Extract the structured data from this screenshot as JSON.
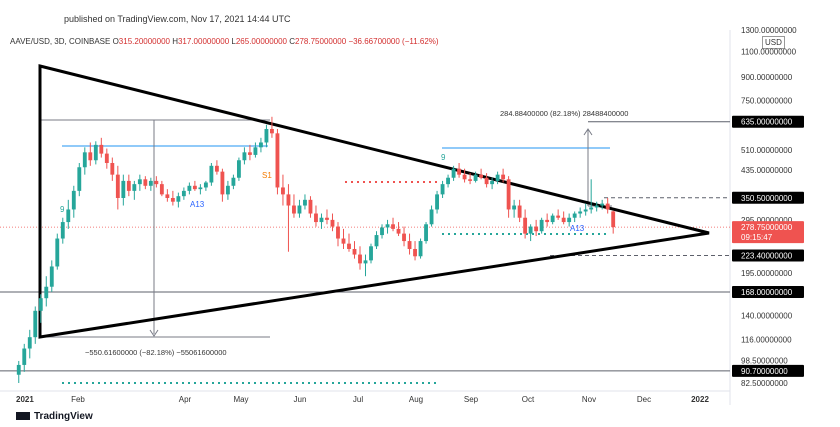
{
  "header": {
    "published": "published on TradingView.com, Nov 17, 2021 14:44 UTC"
  },
  "legend": {
    "symbol": "AAVE/USD, 3D, COINBASE",
    "open_label": "O",
    "open": "315.20000000",
    "high_label": "H",
    "high": "317.00000000",
    "low_label": "L",
    "low": "265.00000000",
    "close_label": "C",
    "close": "278.75000000",
    "change": "−36.66700000 (−11.62%)"
  },
  "currency": "USD",
  "brand": "TradingView",
  "colors": {
    "up": "#26a69a",
    "down": "#ef5350",
    "line": "#000000",
    "measure": "#787b86",
    "fib": "#90caf9",
    "label_bg": "#000000"
  },
  "chart_data": {
    "type": "candlestick",
    "scale": "log",
    "ylim": [
      82.5,
      1300
    ],
    "y_ticks": [
      "1300.00000000",
      "1100.00000000",
      "900.00000000",
      "750.00000000",
      "635.00000000",
      "510.00000000",
      "435.00000000",
      "350.50000000",
      "295.00000000",
      "278.75000000",
      "223.40000000",
      "195.00000000",
      "168.00000000",
      "140.00000000",
      "116.00000000",
      "98.50000000",
      "90.70000000",
      "82.50000000"
    ],
    "y_tick_values": [
      1300,
      1100,
      900,
      750,
      635,
      510,
      435,
      350.5,
      295,
      278.75,
      223.4,
      195,
      168,
      140,
      116,
      98.5,
      90.7,
      82.5
    ],
    "highlighted_levels": [
      "635.00000000",
      "350.50000000",
      "223.40000000",
      "168.00000000",
      "90.70000000"
    ],
    "current_price": "278.75000000",
    "countdown": "09:15:47",
    "x_ticks": [
      "2021",
      "Feb",
      "Apr",
      "May",
      "Jun",
      "Jul",
      "Aug",
      "Sep",
      "Oct",
      "Nov",
      "Dec",
      "2022"
    ],
    "annotations": {
      "upper_measure": "284.88400000 (82.18%) 28488400000",
      "lower_measure": "−550.61600000 (−82.18%) −55061600000",
      "td_labels": [
        "A13",
        "A13",
        "9",
        "9",
        "S1"
      ]
    },
    "candles": [
      {
        "d": "Dec 28",
        "o": 88,
        "h": 98,
        "l": 82.5,
        "c": 95
      },
      {
        "d": "Dec 31",
        "o": 95,
        "h": 112,
        "l": 90,
        "c": 108
      },
      {
        "d": "Jan 03",
        "o": 108,
        "h": 125,
        "l": 100,
        "c": 118
      },
      {
        "d": "Jan 06",
        "o": 118,
        "h": 150,
        "l": 112,
        "c": 145
      },
      {
        "d": "Jan 09",
        "o": 145,
        "h": 165,
        "l": 132,
        "c": 160
      },
      {
        "d": "Jan 12",
        "o": 160,
        "h": 190,
        "l": 150,
        "c": 175
      },
      {
        "d": "Jan 15",
        "o": 175,
        "h": 215,
        "l": 168,
        "c": 205
      },
      {
        "d": "Jan 18",
        "o": 205,
        "h": 265,
        "l": 200,
        "c": 255
      },
      {
        "d": "Jan 21",
        "o": 255,
        "h": 300,
        "l": 245,
        "c": 290
      },
      {
        "d": "Jan 24",
        "o": 290,
        "h": 345,
        "l": 275,
        "c": 320
      },
      {
        "d": "Jan 27",
        "o": 320,
        "h": 385,
        "l": 300,
        "c": 370
      },
      {
        "d": "Jan 30",
        "o": 370,
        "h": 460,
        "l": 355,
        "c": 445
      },
      {
        "d": "Feb 02",
        "o": 445,
        "h": 520,
        "l": 420,
        "c": 500
      },
      {
        "d": "Feb 05",
        "o": 500,
        "h": 540,
        "l": 450,
        "c": 470
      },
      {
        "d": "Feb 08",
        "o": 470,
        "h": 545,
        "l": 455,
        "c": 530
      },
      {
        "d": "Feb 11",
        "o": 530,
        "h": 560,
        "l": 480,
        "c": 495
      },
      {
        "d": "Feb 14",
        "o": 495,
        "h": 515,
        "l": 440,
        "c": 460
      },
      {
        "d": "Feb 17",
        "o": 460,
        "h": 480,
        "l": 400,
        "c": 420
      },
      {
        "d": "Feb 20",
        "o": 420,
        "h": 450,
        "l": 320,
        "c": 350
      },
      {
        "d": "Feb 23",
        "o": 350,
        "h": 420,
        "l": 330,
        "c": 400
      },
      {
        "d": "Feb 26",
        "o": 400,
        "h": 420,
        "l": 355,
        "c": 370
      },
      {
        "d": "Mar 01",
        "o": 370,
        "h": 400,
        "l": 345,
        "c": 390
      },
      {
        "d": "Mar 04",
        "o": 390,
        "h": 420,
        "l": 370,
        "c": 405
      },
      {
        "d": "Mar 07",
        "o": 405,
        "h": 415,
        "l": 375,
        "c": 385
      },
      {
        "d": "Mar 10",
        "o": 385,
        "h": 410,
        "l": 370,
        "c": 400
      },
      {
        "d": "Mar 13",
        "o": 400,
        "h": 415,
        "l": 380,
        "c": 390
      },
      {
        "d": "Mar 16",
        "o": 390,
        "h": 400,
        "l": 355,
        "c": 360
      },
      {
        "d": "Mar 19",
        "o": 360,
        "h": 375,
        "l": 340,
        "c": 350
      },
      {
        "d": "Mar 22",
        "o": 350,
        "h": 370,
        "l": 330,
        "c": 340
      },
      {
        "d": "Mar 25",
        "o": 340,
        "h": 365,
        "l": 325,
        "c": 355
      },
      {
        "d": "Mar 28",
        "o": 355,
        "h": 380,
        "l": 345,
        "c": 370
      },
      {
        "d": "Mar 31",
        "o": 370,
        "h": 395,
        "l": 360,
        "c": 385
      },
      {
        "d": "Apr 03",
        "o": 385,
        "h": 400,
        "l": 370,
        "c": 375
      },
      {
        "d": "Apr 06",
        "o": 375,
        "h": 390,
        "l": 360,
        "c": 380
      },
      {
        "d": "Apr 09",
        "o": 380,
        "h": 400,
        "l": 370,
        "c": 395
      },
      {
        "d": "Apr 12",
        "o": 395,
        "h": 460,
        "l": 385,
        "c": 450
      },
      {
        "d": "Apr 15",
        "o": 450,
        "h": 470,
        "l": 420,
        "c": 430
      },
      {
        "d": "Apr 18",
        "o": 430,
        "h": 440,
        "l": 340,
        "c": 360
      },
      {
        "d": "Apr 21",
        "o": 360,
        "h": 400,
        "l": 345,
        "c": 385
      },
      {
        "d": "Apr 24",
        "o": 385,
        "h": 420,
        "l": 375,
        "c": 410
      },
      {
        "d": "Apr 27",
        "o": 410,
        "h": 480,
        "l": 400,
        "c": 470
      },
      {
        "d": "Apr 30",
        "o": 470,
        "h": 520,
        "l": 455,
        "c": 500
      },
      {
        "d": "May 03",
        "o": 500,
        "h": 530,
        "l": 470,
        "c": 490
      },
      {
        "d": "May 06",
        "o": 490,
        "h": 540,
        "l": 480,
        "c": 520
      },
      {
        "d": "May 09",
        "o": 520,
        "h": 560,
        "l": 500,
        "c": 540
      },
      {
        "d": "May 12",
        "o": 540,
        "h": 620,
        "l": 520,
        "c": 600
      },
      {
        "d": "May 15",
        "o": 600,
        "h": 660,
        "l": 560,
        "c": 580
      },
      {
        "d": "May 18",
        "o": 580,
        "h": 600,
        "l": 360,
        "c": 380
      },
      {
        "d": "May 21",
        "o": 380,
        "h": 420,
        "l": 330,
        "c": 360
      },
      {
        "d": "May 24",
        "o": 360,
        "h": 390,
        "l": 230,
        "c": 330
      },
      {
        "d": "May 27",
        "o": 330,
        "h": 360,
        "l": 300,
        "c": 310
      },
      {
        "d": "May 30",
        "o": 310,
        "h": 345,
        "l": 300,
        "c": 330
      },
      {
        "d": "Jun 02",
        "o": 330,
        "h": 360,
        "l": 320,
        "c": 345
      },
      {
        "d": "Jun 05",
        "o": 345,
        "h": 355,
        "l": 300,
        "c": 310
      },
      {
        "d": "Jun 08",
        "o": 310,
        "h": 330,
        "l": 280,
        "c": 290
      },
      {
        "d": "Jun 11",
        "o": 290,
        "h": 310,
        "l": 275,
        "c": 300
      },
      {
        "d": "Jun 14",
        "o": 300,
        "h": 320,
        "l": 285,
        "c": 295
      },
      {
        "d": "Jun 17",
        "o": 295,
        "h": 310,
        "l": 270,
        "c": 280
      },
      {
        "d": "Jun 20",
        "o": 280,
        "h": 290,
        "l": 240,
        "c": 255
      },
      {
        "d": "Jun 23",
        "o": 255,
        "h": 275,
        "l": 235,
        "c": 245
      },
      {
        "d": "Jun 26",
        "o": 245,
        "h": 265,
        "l": 230,
        "c": 235
      },
      {
        "d": "Jun 29",
        "o": 235,
        "h": 250,
        "l": 218,
        "c": 225
      },
      {
        "d": "Jul 02",
        "o": 225,
        "h": 240,
        "l": 200,
        "c": 210
      },
      {
        "d": "Jul 05",
        "o": 210,
        "h": 225,
        "l": 190,
        "c": 215
      },
      {
        "d": "Jul 08",
        "o": 215,
        "h": 245,
        "l": 210,
        "c": 240
      },
      {
        "d": "Jul 11",
        "o": 240,
        "h": 270,
        "l": 235,
        "c": 262
      },
      {
        "d": "Jul 14",
        "o": 262,
        "h": 285,
        "l": 255,
        "c": 278
      },
      {
        "d": "Jul 17",
        "o": 278,
        "h": 295,
        "l": 265,
        "c": 285
      },
      {
        "d": "Jul 20",
        "o": 285,
        "h": 300,
        "l": 270,
        "c": 275
      },
      {
        "d": "Jul 23",
        "o": 275,
        "h": 290,
        "l": 260,
        "c": 265
      },
      {
        "d": "Jul 26",
        "o": 265,
        "h": 280,
        "l": 240,
        "c": 250
      },
      {
        "d": "Jul 29",
        "o": 250,
        "h": 265,
        "l": 225,
        "c": 235
      },
      {
        "d": "Aug 01",
        "o": 235,
        "h": 250,
        "l": 215,
        "c": 222
      },
      {
        "d": "Aug 04",
        "o": 222,
        "h": 255,
        "l": 218,
        "c": 250
      },
      {
        "d": "Aug 07",
        "o": 250,
        "h": 290,
        "l": 245,
        "c": 285
      },
      {
        "d": "Aug 10",
        "o": 285,
        "h": 330,
        "l": 280,
        "c": 320
      },
      {
        "d": "Aug 13",
        "o": 320,
        "h": 370,
        "l": 310,
        "c": 360
      },
      {
        "d": "Aug 16",
        "o": 360,
        "h": 400,
        "l": 350,
        "c": 390
      },
      {
        "d": "Aug 19",
        "o": 390,
        "h": 420,
        "l": 380,
        "c": 410
      },
      {
        "d": "Aug 22",
        "o": 410,
        "h": 450,
        "l": 400,
        "c": 440
      },
      {
        "d": "Aug 25",
        "o": 440,
        "h": 460,
        "l": 410,
        "c": 420
      },
      {
        "d": "Aug 28",
        "o": 420,
        "h": 440,
        "l": 395,
        "c": 405
      },
      {
        "d": "Aug 31",
        "o": 405,
        "h": 425,
        "l": 390,
        "c": 400
      },
      {
        "d": "Sep 03",
        "o": 400,
        "h": 430,
        "l": 395,
        "c": 420
      },
      {
        "d": "Sep 06",
        "o": 420,
        "h": 440,
        "l": 405,
        "c": 410
      },
      {
        "d": "Sep 09",
        "o": 410,
        "h": 425,
        "l": 380,
        "c": 390
      },
      {
        "d": "Sep 12",
        "o": 390,
        "h": 410,
        "l": 375,
        "c": 400
      },
      {
        "d": "Sep 15",
        "o": 400,
        "h": 430,
        "l": 390,
        "c": 420
      },
      {
        "d": "Sep 18",
        "o": 420,
        "h": 440,
        "l": 395,
        "c": 405
      },
      {
        "d": "Sep 21",
        "o": 405,
        "h": 415,
        "l": 300,
        "c": 320
      },
      {
        "d": "Sep 24",
        "o": 320,
        "h": 345,
        "l": 300,
        "c": 330
      },
      {
        "d": "Sep 27",
        "o": 330,
        "h": 345,
        "l": 290,
        "c": 300
      },
      {
        "d": "Sep 30",
        "o": 300,
        "h": 320,
        "l": 255,
        "c": 265
      },
      {
        "d": "Oct 03",
        "o": 265,
        "h": 285,
        "l": 250,
        "c": 280
      },
      {
        "d": "Oct 06",
        "o": 280,
        "h": 295,
        "l": 260,
        "c": 270
      },
      {
        "d": "Oct 09",
        "o": 270,
        "h": 300,
        "l": 265,
        "c": 295
      },
      {
        "d": "Oct 12",
        "o": 295,
        "h": 310,
        "l": 280,
        "c": 290
      },
      {
        "d": "Oct 15",
        "o": 290,
        "h": 310,
        "l": 285,
        "c": 305
      },
      {
        "d": "Oct 18",
        "o": 305,
        "h": 320,
        "l": 295,
        "c": 300
      },
      {
        "d": "Oct 21",
        "o": 300,
        "h": 315,
        "l": 285,
        "c": 290
      },
      {
        "d": "Oct 24",
        "o": 290,
        "h": 310,
        "l": 280,
        "c": 300
      },
      {
        "d": "Oct 27",
        "o": 300,
        "h": 315,
        "l": 290,
        "c": 310
      },
      {
        "d": "Oct 30",
        "o": 310,
        "h": 325,
        "l": 300,
        "c": 315
      },
      {
        "d": "Nov 02",
        "o": 315,
        "h": 335,
        "l": 305,
        "c": 320
      },
      {
        "d": "Nov 05",
        "o": 320,
        "h": 405,
        "l": 310,
        "c": 325
      },
      {
        "d": "Nov 08",
        "o": 325,
        "h": 340,
        "l": 315,
        "c": 330
      },
      {
        "d": "Nov 11",
        "o": 330,
        "h": 345,
        "l": 320,
        "c": 335
      },
      {
        "d": "Nov 14",
        "o": 335,
        "h": 350,
        "l": 310,
        "c": 320
      },
      {
        "d": "Nov 17",
        "o": 315.2,
        "h": 317,
        "l": 265,
        "c": 278.75
      }
    ]
  }
}
